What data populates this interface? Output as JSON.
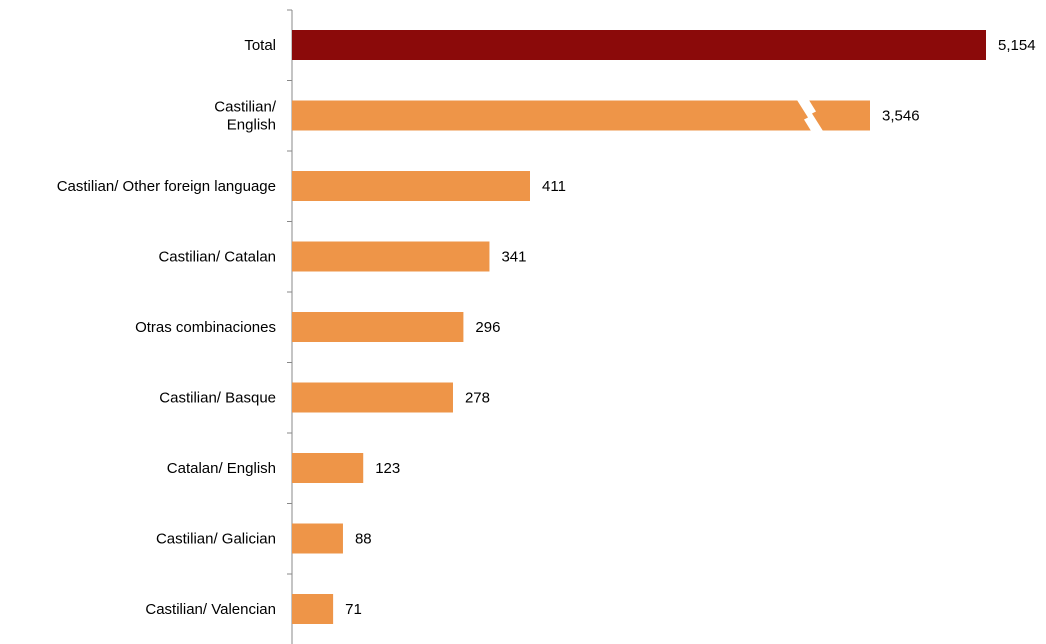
{
  "chart_data": {
    "type": "bar",
    "orientation": "horizontal",
    "categories": [
      [
        "Total"
      ],
      [
        "Castilian/",
        "English"
      ],
      [
        "Castilian/ Other foreign language"
      ],
      [
        "Castilian/ Catalan"
      ],
      [
        "Otras combinaciones"
      ],
      [
        "Castilian/ Basque"
      ],
      [
        "Catalan/ English"
      ],
      [
        "Castilian/ Galician"
      ],
      [
        "Castilian/ Valencian"
      ]
    ],
    "values": [
      5154,
      3546,
      411,
      341,
      296,
      278,
      123,
      88,
      71
    ],
    "value_labels": [
      "5,154",
      "3,546",
      "411",
      "341",
      "296",
      "278",
      "123",
      "88",
      "71"
    ],
    "axis_break": true,
    "broken_bar": "Castilian/ English",
    "colors": {
      "highlight": "#8B0A0A",
      "bar": "#EE9548",
      "axis": "#888888"
    },
    "title": "",
    "xlabel": "",
    "ylabel": ""
  }
}
